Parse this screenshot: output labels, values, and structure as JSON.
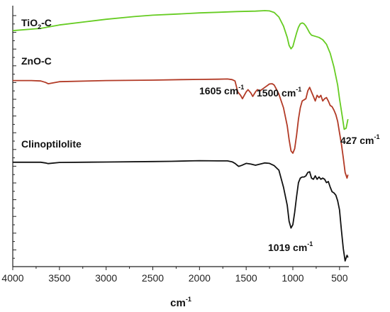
{
  "chart_data": {
    "type": "line",
    "xlabel": "cm",
    "xlabel_sup": "-1",
    "xlim": [
      4000,
      400
    ],
    "x_reversed": true,
    "x_ticks": [
      4000,
      3500,
      3000,
      2500,
      2000,
      1500,
      1000,
      500
    ],
    "y_ticks_labeled": false,
    "grid": false,
    "series": [
      {
        "name": "TiO2-C",
        "label_main": "TiO",
        "label_sub": "2",
        "label_tail": "-C",
        "color": "#66cc22",
        "x": [
          4000,
          3700,
          3500,
          3200,
          3000,
          2700,
          2500,
          2300,
          2100,
          2000,
          1800,
          1600,
          1400,
          1300,
          1250,
          1200,
          1150,
          1100,
          1060,
          1040,
          1020,
          1000,
          980,
          960,
          940,
          920,
          900,
          880,
          860,
          840,
          820,
          800,
          760,
          720,
          680,
          640,
          600,
          560,
          520,
          500,
          470,
          450,
          430,
          410
        ],
        "y": [
          84,
          85,
          86.5,
          88,
          89,
          90.2,
          90.8,
          91.2,
          91.6,
          91.8,
          92.1,
          92.4,
          92.6,
          92.8,
          92.7,
          92.0,
          90.0,
          86.0,
          81.0,
          77.5,
          76.0,
          77.0,
          80.0,
          83.0,
          85.5,
          87.0,
          87.4,
          87.0,
          86.0,
          84.5,
          83.0,
          82.0,
          81.5,
          81.0,
          80.0,
          78.0,
          74.0,
          68.0,
          60.0,
          54.0,
          46.0,
          40.5,
          41.0,
          45.0
        ]
      },
      {
        "name": "ZnO-C",
        "label_main": "ZnO-C",
        "color": "#b23a26",
        "x": [
          4000,
          3800,
          3700,
          3650,
          3620,
          3500,
          3000,
          2500,
          2200,
          2000,
          1800,
          1700,
          1650,
          1620,
          1605,
          1590,
          1560,
          1540,
          1520,
          1500,
          1480,
          1450,
          1430,
          1400,
          1380,
          1350,
          1300,
          1250,
          1220,
          1200,
          1180,
          1150,
          1100,
          1060,
          1040,
          1020,
          1000,
          980,
          960,
          940,
          920,
          900,
          880,
          860,
          840,
          820,
          800,
          780,
          760,
          740,
          720,
          700,
          680,
          660,
          640,
          620,
          600,
          580,
          560,
          540,
          520,
          500,
          480,
          460,
          440,
          420,
          410
        ],
        "y": [
          62,
          62,
          61.8,
          61.2,
          60.6,
          61.5,
          62.0,
          62.2,
          62.4,
          62.5,
          62.6,
          62.7,
          62.4,
          61.8,
          59.5,
          57.0,
          55.5,
          54.0,
          55.5,
          57.0,
          58.0,
          56.5,
          55.0,
          57.0,
          58.0,
          57.5,
          59.0,
          60.5,
          60.6,
          60.0,
          58.5,
          56.0,
          50.0,
          42.0,
          36.0,
          31.0,
          30.0,
          32.0,
          38.0,
          45.0,
          50.0,
          53.0,
          53.5,
          54.0,
          57.5,
          59.0,
          57.0,
          55.0,
          53.0,
          55.5,
          54.5,
          55.5,
          53.0,
          54.0,
          54.5,
          53.0,
          51.0,
          50.5,
          49.0,
          47.0,
          44.0,
          39.0,
          34.0,
          28.0,
          21.5,
          19.0,
          20.5
        ]
      },
      {
        "name": "Clinoptilolite",
        "label_main": "Clinoptilolite",
        "color": "#111111",
        "x": [
          4000,
          3800,
          3700,
          3650,
          3620,
          3500,
          3000,
          2500,
          2300,
          2200,
          2100,
          2000,
          1800,
          1700,
          1650,
          1620,
          1600,
          1580,
          1550,
          1500,
          1450,
          1400,
          1350,
          1300,
          1250,
          1200,
          1150,
          1100,
          1060,
          1040,
          1020,
          1000,
          980,
          960,
          940,
          920,
          900,
          880,
          860,
          840,
          820,
          800,
          780,
          760,
          740,
          720,
          700,
          680,
          660,
          640,
          620,
          600,
          580,
          560,
          540,
          520,
          500,
          480,
          460,
          440,
          420,
          410
        ],
        "y": [
          26,
          26,
          26,
          25.7,
          25.4,
          25.9,
          26.1,
          26.3,
          26.4,
          26.5,
          26.6,
          26.7,
          26.6,
          26.6,
          26.2,
          25.5,
          24.8,
          24.2,
          24.6,
          25.5,
          25.2,
          24.7,
          25.2,
          25.7,
          25.5,
          24.5,
          22.5,
          15.0,
          7.0,
          0.0,
          -3.0,
          -1.5,
          4.0,
          11.0,
          17.0,
          19.0,
          19.5,
          19.5,
          20.0,
          21.5,
          21.8,
          19.0,
          18.5,
          20.0,
          18.5,
          19.5,
          18.5,
          19.0,
          18.5,
          17.0,
          17.5,
          15.0,
          13.0,
          12.5,
          11.5,
          9.0,
          5.0,
          -4.0,
          -12.0,
          -17.5,
          -15.0,
          -16.0
        ]
      }
    ],
    "annotations": [
      {
        "text": "1605 cm",
        "sup": "-1"
      },
      {
        "text": "1500 cm",
        "sup": "-1"
      },
      {
        "text": "427 cm",
        "sup": "-1"
      },
      {
        "text": "1019 cm",
        "sup": "-1"
      }
    ]
  }
}
